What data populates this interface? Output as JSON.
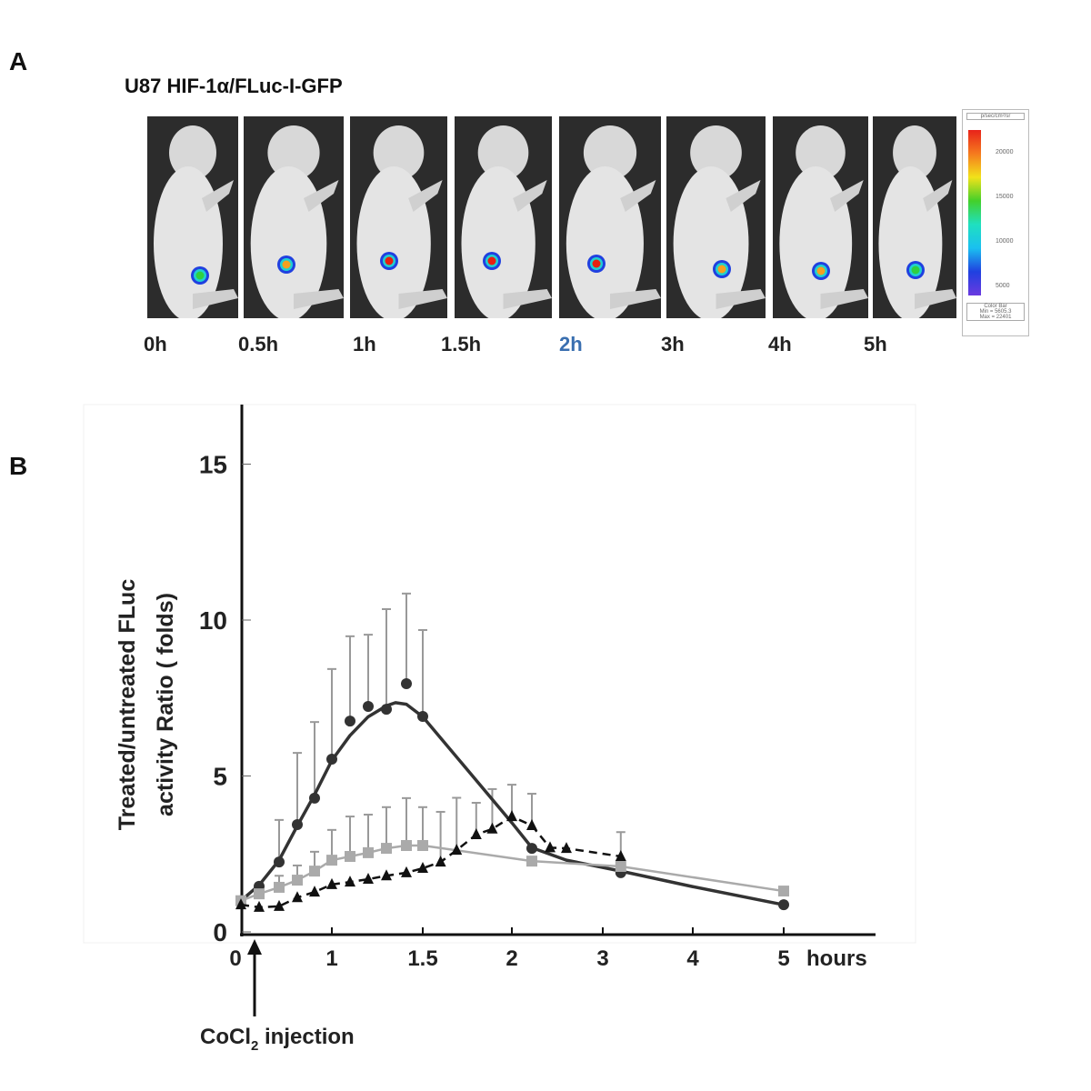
{
  "panel_a": {
    "letter": "A",
    "title": "U87 HIF-1α/FLuc-I-GFP",
    "timepoints": [
      {
        "label": "0h",
        "signal": 0.35,
        "highlight": false
      },
      {
        "label": "0.5h",
        "signal": 0.5,
        "highlight": false
      },
      {
        "label": "1h",
        "signal": 0.75,
        "highlight": false
      },
      {
        "label": "1.5h",
        "signal": 0.85,
        "highlight": false
      },
      {
        "label": "2h",
        "signal": 1.0,
        "highlight": true
      },
      {
        "label": "3h",
        "signal": 0.6,
        "highlight": false
      },
      {
        "label": "4h",
        "signal": 0.5,
        "highlight": false
      },
      {
        "label": "5h",
        "signal": 0.4,
        "highlight": false
      }
    ],
    "highlight_color": "#3a6fb0",
    "colorbar": {
      "unit": "p/sec/cm²/sr",
      "ticks": [
        "20000",
        "15000",
        "10000",
        "5000"
      ],
      "caption": "Color Bar",
      "min": "Min = 5605.3",
      "max": "Max = 22401"
    }
  },
  "panel_b": {
    "letter": "B"
  },
  "chart_data": {
    "type": "line",
    "title": "",
    "ylabel_line1": "Treated/untreated FLuc",
    "ylabel_line2": "activity Ratio ( folds)",
    "xlabel": "hours",
    "ylim": [
      0,
      17
    ],
    "yticks": [
      {
        "v": 0,
        "label": "0"
      },
      {
        "v": 5,
        "label": "5"
      },
      {
        "v": 10,
        "label": "10"
      },
      {
        "v": 15,
        "label": "15"
      }
    ],
    "xticks": [
      {
        "v": 0,
        "label": "0"
      },
      {
        "v": 1,
        "label": "1"
      },
      {
        "v": 1.5,
        "label": "1.5"
      },
      {
        "v": 2,
        "label": "2"
      },
      {
        "v": 3,
        "label": "3"
      },
      {
        "v": 4,
        "label": "4"
      },
      {
        "v": 5,
        "label": "5"
      }
    ],
    "annotation": {
      "text": "CoCl",
      "sub": "2",
      "text2": " injection",
      "x": 0.15
    },
    "series": [
      {
        "name": "circles",
        "marker": "circle",
        "color": "#333333",
        "line": "fit",
        "x": [
          0,
          0.2,
          0.42,
          0.62,
          0.81,
          1.0,
          1.1,
          1.2,
          1.3,
          1.41,
          1.5,
          2.22,
          3.2,
          5.0
        ],
        "y": [
          1.0,
          1.46,
          2.24,
          3.44,
          4.29,
          5.54,
          6.76,
          7.23,
          7.14,
          7.96,
          6.91,
          2.68,
          1.9,
          0.87
        ],
        "upper": [
          null,
          null,
          3.59,
          5.74,
          6.73,
          8.43,
          9.48,
          9.53,
          10.35,
          10.85,
          9.68,
          null,
          null,
          null
        ],
        "fit_x": [
          0,
          0.2,
          0.42,
          0.62,
          0.81,
          1.0,
          1.1,
          1.2,
          1.3,
          1.35,
          1.41,
          1.5,
          1.75,
          2.0,
          2.22,
          2.6,
          3.2,
          4.0,
          5.0
        ],
        "fit_y": [
          1.0,
          1.5,
          2.3,
          3.4,
          4.4,
          5.5,
          6.3,
          6.9,
          7.25,
          7.35,
          7.3,
          6.9,
          5.2,
          3.5,
          2.7,
          2.3,
          1.95,
          1.45,
          0.87
        ]
      },
      {
        "name": "squares",
        "marker": "square",
        "color": "#aaaaaa",
        "line": "solid",
        "x": [
          0,
          0.2,
          0.42,
          0.62,
          0.81,
          1.0,
          1.1,
          1.2,
          1.3,
          1.41,
          1.5,
          2.22,
          3.2,
          5.0
        ],
        "y": [
          1.0,
          1.22,
          1.43,
          1.66,
          1.95,
          2.3,
          2.42,
          2.54,
          2.68,
          2.77,
          2.77,
          2.27,
          2.1,
          1.31
        ],
        "upper": [
          null,
          null,
          1.8,
          2.13,
          2.57,
          3.27,
          3.7,
          3.76,
          4.0,
          4.29,
          4.0,
          null,
          null,
          null
        ]
      },
      {
        "name": "triangles",
        "marker": "triangle",
        "color": "#111111",
        "line": "dashed",
        "x": [
          0,
          0.2,
          0.42,
          0.62,
          0.81,
          1.0,
          1.1,
          1.2,
          1.3,
          1.41,
          1.5,
          1.6,
          1.69,
          1.8,
          1.89,
          2.0,
          2.22,
          2.42,
          2.6,
          3.2
        ],
        "y": [
          0.87,
          0.79,
          0.82,
          1.1,
          1.28,
          1.52,
          1.6,
          1.69,
          1.8,
          1.9,
          2.04,
          2.24,
          2.62,
          3.12,
          3.3,
          3.7,
          3.41,
          2.7,
          2.68,
          2.42
        ],
        "upper": [
          null,
          null,
          null,
          null,
          null,
          null,
          null,
          null,
          null,
          null,
          null,
          3.85,
          4.3,
          4.14,
          4.58,
          4.72,
          4.43,
          null,
          null,
          3.2
        ]
      }
    ]
  }
}
